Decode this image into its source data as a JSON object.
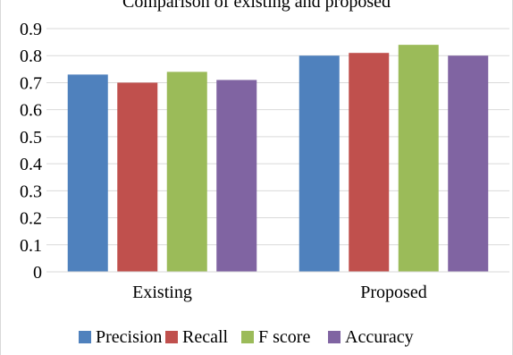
{
  "chart_data": {
    "type": "bar",
    "title": "Comparison of existing and proposed",
    "categories": [
      "Existing",
      "Proposed"
    ],
    "series": [
      {
        "name": "Precision",
        "values": [
          0.73,
          0.8
        ],
        "color": "#4F81BD"
      },
      {
        "name": "Recall",
        "values": [
          0.7,
          0.81
        ],
        "color": "#C0504D"
      },
      {
        "name": "F score",
        "values": [
          0.74,
          0.84
        ],
        "color": "#9BBB59"
      },
      {
        "name": "Accuracy",
        "values": [
          0.71,
          0.8
        ],
        "color": "#8064A2"
      }
    ],
    "ylim": [
      0,
      0.9
    ],
    "yticks": [
      "0",
      "0.1",
      "0.2",
      "0.3",
      "0.4",
      "0.5",
      "0.6",
      "0.7",
      "0.8",
      "0.9"
    ],
    "grid": true,
    "legend": "bottom"
  }
}
